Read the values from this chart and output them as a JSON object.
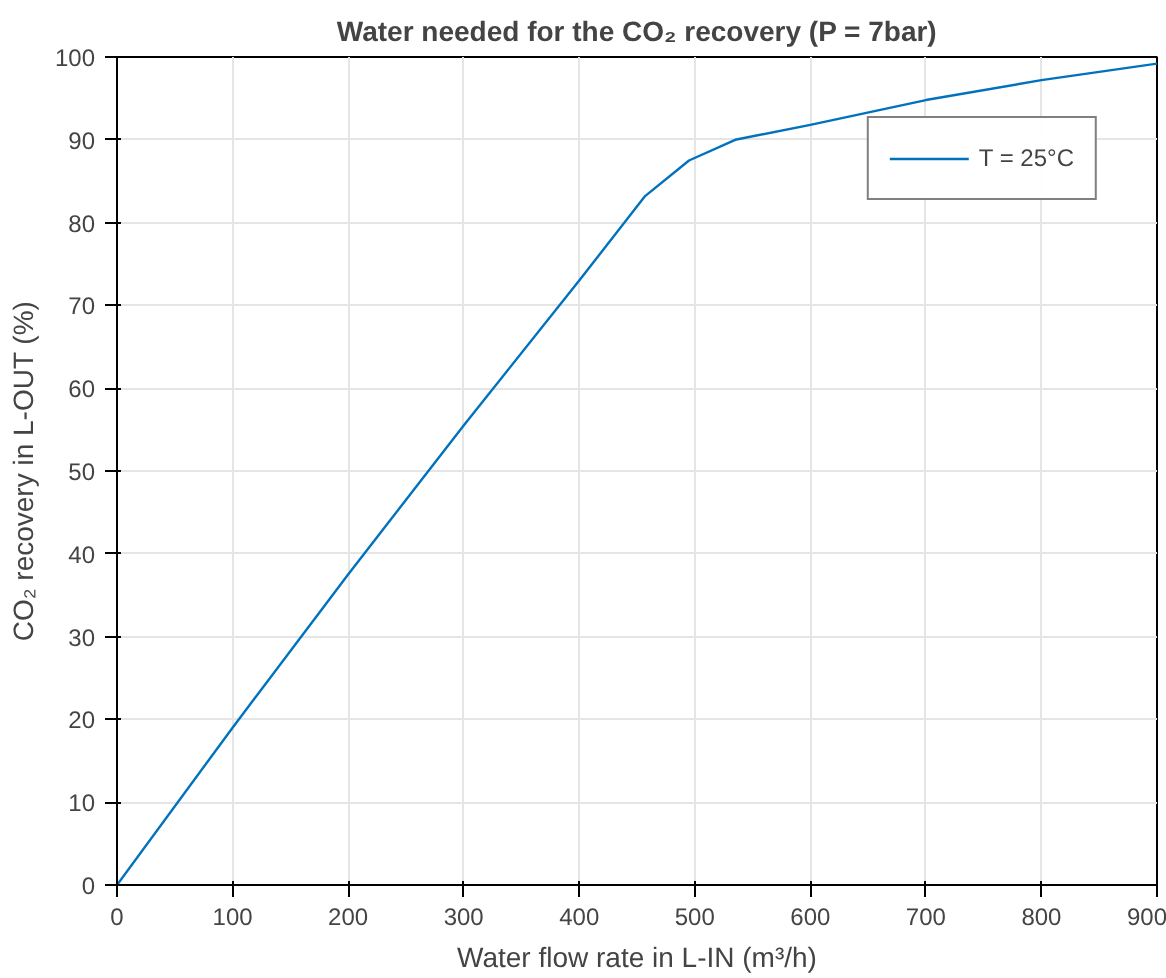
{
  "chart_data": {
    "type": "line",
    "title": "Water needed for the CO₂ recovery (P = 7bar)",
    "xlabel": "Water flow rate in L-IN (m³/h)",
    "ylabel": "CO₂ recovery in L-OUT (%)",
    "x": [
      0,
      100,
      200,
      300,
      400,
      457,
      495,
      535,
      600,
      700,
      800,
      900
    ],
    "series": [
      {
        "name": "T = 25°C",
        "color": "#0072bd",
        "values": [
          0,
          19,
          37.5,
          55.5,
          73,
          83.2,
          87.5,
          90,
          91.8,
          94.8,
          97.2,
          99.2
        ]
      }
    ],
    "xlim": [
      0,
      900
    ],
    "ylim": [
      0,
      100
    ],
    "xticks": [
      0,
      100,
      200,
      300,
      400,
      500,
      600,
      700,
      800,
      900
    ],
    "yticks": [
      0,
      10,
      20,
      30,
      40,
      50,
      60,
      70,
      80,
      90,
      100
    ],
    "grid": true,
    "legend": "top right",
    "marker": "none",
    "line_style": "solid"
  }
}
